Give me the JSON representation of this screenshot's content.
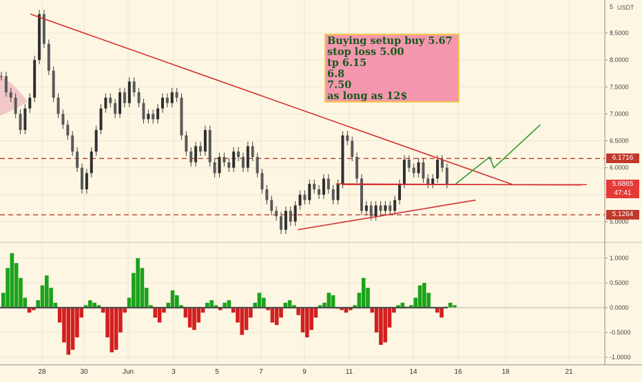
{
  "header": {
    "unit": "USDT"
  },
  "note": {
    "lines": [
      "Buying setup buy 5.67",
      "stop loss 5.00",
      "tp 6.15",
      "6.8",
      "7.50",
      "as long as 12$"
    ]
  },
  "badges": {
    "resistance": {
      "text": "6.1716",
      "color": "#c0392b"
    },
    "current_price": {
      "text": "5.6865",
      "color": "#e53935"
    },
    "countdown": {
      "text": "47:41",
      "color": "#e53935"
    },
    "support": {
      "text": "5.1264",
      "color": "#c0392b"
    }
  },
  "chart_data": [
    {
      "type": "line",
      "title": "",
      "price_axis": {
        "ticks": [
          5.0,
          5.5,
          6.0,
          6.5,
          7.0,
          7.5,
          8.0,
          8.5
        ],
        "tick_labels": [
          "5.0000",
          "5.5000",
          "6.0000",
          "6.5000",
          "7.0000",
          "7.5000",
          "8.0000",
          "8.5000"
        ],
        "top_tick_label": "5",
        "ylim": [
          4.7,
          9.0
        ]
      },
      "x_axis": {
        "tick_labels": [
          "28",
          "30",
          "Jun",
          "3",
          "5",
          "7",
          "9",
          "11",
          "14",
          "16",
          "18",
          "21"
        ]
      },
      "price_series": [
        7.7,
        7.4,
        7.3,
        7.0,
        6.7,
        7.1,
        7.3,
        8.0,
        8.85,
        8.3,
        7.8,
        7.3,
        7.0,
        6.8,
        6.6,
        6.3,
        6.0,
        5.6,
        5.9,
        6.3,
        6.7,
        7.1,
        7.3,
        7.2,
        7.0,
        7.4,
        7.2,
        7.6,
        7.4,
        7.2,
        6.9,
        7.0,
        6.9,
        7.1,
        7.3,
        7.2,
        7.4,
        7.3,
        6.6,
        6.3,
        6.1,
        6.4,
        6.3,
        6.7,
        6.1,
        5.9,
        6.2,
        6.1,
        6.0,
        6.3,
        6.2,
        6.0,
        6.4,
        6.2,
        5.9,
        5.6,
        5.4,
        5.2,
        5.1,
        4.85,
        5.2,
        5.0,
        5.3,
        5.5,
        5.4,
        5.7,
        5.6,
        5.5,
        5.8,
        5.6,
        5.4,
        5.7,
        6.6,
        6.5,
        6.2,
        5.8,
        5.2,
        5.3,
        5.1,
        5.3,
        5.2,
        5.3,
        5.2,
        5.4,
        5.7,
        6.15,
        6.0,
        5.9,
        6.1,
        5.8,
        5.7,
        5.8,
        6.15,
        6.0,
        5.7
      ],
      "horizontal_levels": [
        {
          "price": 6.1716,
          "style": "dashed",
          "color": "#c0392b"
        },
        {
          "price": 5.1264,
          "style": "dashed",
          "color": "#c0392b"
        },
        {
          "price": 5.6865,
          "style": "solid",
          "color": "#e53935"
        }
      ],
      "trendlines": [
        {
          "from": {
            "bar": 8,
            "price": 8.85
          },
          "to": {
            "bar": 121,
            "price": 5.68
          },
          "color": "#d32f2f"
        },
        {
          "from": {
            "bar": 70,
            "price": 4.85
          },
          "to": {
            "bar": 112,
            "price": 5.4
          },
          "color": "#d32f2f"
        },
        {
          "from": {
            "bar": 79,
            "price": 5.7
          },
          "to": {
            "bar": 137,
            "price": 5.68
          },
          "color": "#d32f2f"
        }
      ],
      "projection": [
        {
          "bar": 104,
          "price": 5.7
        },
        {
          "bar": 112,
          "price": 6.2
        },
        {
          "bar": 113,
          "price": 6.0
        },
        {
          "bar": 124,
          "price": 6.8
        }
      ]
    },
    {
      "type": "bar",
      "title": "",
      "osc_axis": {
        "ticks": [
          1.0,
          0.5,
          0.0,
          -0.5,
          -1.0
        ],
        "tick_labels": [
          "1.0000",
          "0.5000",
          "0.0000",
          "-0.5000",
          "-1.0000"
        ],
        "ylim": [
          -1.1,
          1.2
        ]
      },
      "values": [
        0.3,
        0.8,
        1.1,
        0.9,
        0.6,
        0.2,
        -0.1,
        -0.05,
        0.15,
        0.45,
        0.65,
        0.4,
        0.1,
        -0.3,
        -0.7,
        -0.95,
        -0.85,
        -0.6,
        -0.2,
        0.05,
        0.15,
        0.1,
        0.05,
        -0.1,
        -0.6,
        -0.9,
        -0.85,
        -0.5,
        -0.1,
        0.2,
        0.7,
        1.0,
        0.8,
        0.4,
        0.05,
        -0.2,
        -0.3,
        -0.1,
        0.1,
        0.35,
        0.25,
        0.05,
        -0.2,
        -0.4,
        -0.45,
        -0.3,
        -0.1,
        0.1,
        0.15,
        0.05,
        -0.05,
        0.1,
        0.15,
        -0.1,
        -0.3,
        -0.55,
        -0.45,
        -0.2,
        0.1,
        0.3,
        0.2,
        -0.05,
        -0.3,
        -0.35,
        -0.2,
        0.1,
        0.15,
        0.05,
        -0.15,
        -0.5,
        -0.6,
        -0.45,
        -0.2,
        0.05,
        0.1,
        0.3,
        0.25,
        -0.02,
        -0.05,
        -0.1,
        -0.05,
        0.05,
        0.3,
        0.6,
        0.4,
        -0.1,
        -0.5,
        -0.75,
        -0.7,
        -0.4,
        -0.1,
        0.05,
        0.1,
        0.02,
        0.05,
        0.2,
        0.45,
        0.5,
        0.3,
        0.0,
        -0.1,
        -0.2,
        0.02,
        0.1,
        0.05
      ],
      "positive_color": "#1aa31a",
      "negative_color": "#d21f1f"
    }
  ]
}
